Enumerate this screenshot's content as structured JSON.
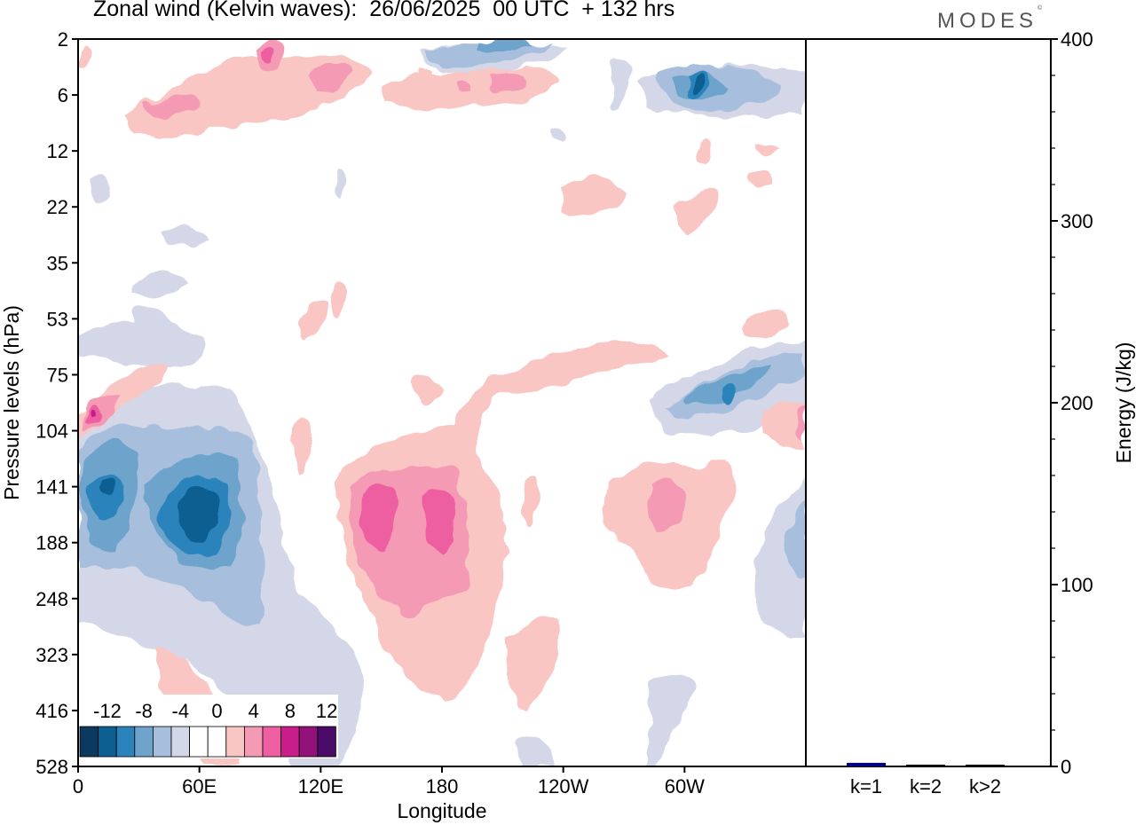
{
  "header": {
    "title": "Zonal wind (Kelvin waves):  26/06/2025  00 UTC  + 132 hrs",
    "brand": "MODES"
  },
  "colors": {
    "neg": [
      "#0b3a5e",
      "#0d5f91",
      "#2b83bb",
      "#6ea4cc",
      "#a7bfdc",
      "#d3d7e8"
    ],
    "pos": [
      "#f9c6c3",
      "#f49ab5",
      "#ee5fa2",
      "#c81d8a",
      "#93117a",
      "#4a0a68"
    ],
    "energy_bar": "#000080"
  },
  "chart_data": [
    {
      "type": "heatmap",
      "title": "Zonal wind (Kelvin waves):  26/06/2025  00 UTC  + 132 hrs",
      "xlabel": "Longitude",
      "ylabel": "Pressure levels (hPa)",
      "x_ticks": [
        "0",
        "60E",
        "120E",
        "180",
        "120W",
        "60W"
      ],
      "x_tick_values_deg": [
        0,
        60,
        120,
        180,
        240,
        300
      ],
      "xlim": [
        0,
        360
      ],
      "y_ticks": [
        "2",
        "6",
        "12",
        "22",
        "35",
        "53",
        "75",
        "104",
        "141",
        "188",
        "248",
        "323",
        "416",
        "528"
      ],
      "colorbar": {
        "labels": [
          "-12",
          "-8",
          "-4",
          "0",
          "4",
          "8",
          "12"
        ],
        "levels": [
          -14,
          -12,
          -10,
          -8,
          -6,
          -4,
          -2,
          2,
          4,
          6,
          8,
          10,
          12,
          14
        ]
      },
      "features": [
        {
          "sign": "neg",
          "lon": [
            10,
            70
          ],
          "level": [
            104,
            248
          ],
          "min_value": -12
        },
        {
          "sign": "pos",
          "lon": [
            130,
            200
          ],
          "level": [
            104,
            323
          ],
          "max_value": 9
        },
        {
          "sign": "pos",
          "lon": [
            260,
            320
          ],
          "level": [
            104,
            248
          ],
          "max_value": 6
        },
        {
          "sign": "neg",
          "lon": [
            280,
            360
          ],
          "level": [
            75,
            104
          ],
          "min_value": -8
        },
        {
          "sign": "neg",
          "lon": [
            165,
            200
          ],
          "level": [
            2,
            6
          ],
          "min_value": -6
        },
        {
          "sign": "neg",
          "lon": [
            280,
            310
          ],
          "level": [
            2,
            12
          ],
          "min_value": -10
        },
        {
          "sign": "pos",
          "lon": [
            20,
            140
          ],
          "level": [
            2,
            12
          ],
          "max_value": 8
        },
        {
          "sign": "pos",
          "lon": [
            160,
            250
          ],
          "level": [
            2,
            12
          ],
          "max_value": 6
        }
      ]
    },
    {
      "type": "bar",
      "categories": [
        "k=1",
        "k=2",
        "k>2"
      ],
      "values": [
        1.5,
        0.5,
        0.5
      ],
      "ylabel": "Energy (J/kg)",
      "y_ticks": [
        "0",
        "100",
        "200",
        "300",
        "400"
      ],
      "ylim": [
        0,
        400
      ]
    }
  ]
}
